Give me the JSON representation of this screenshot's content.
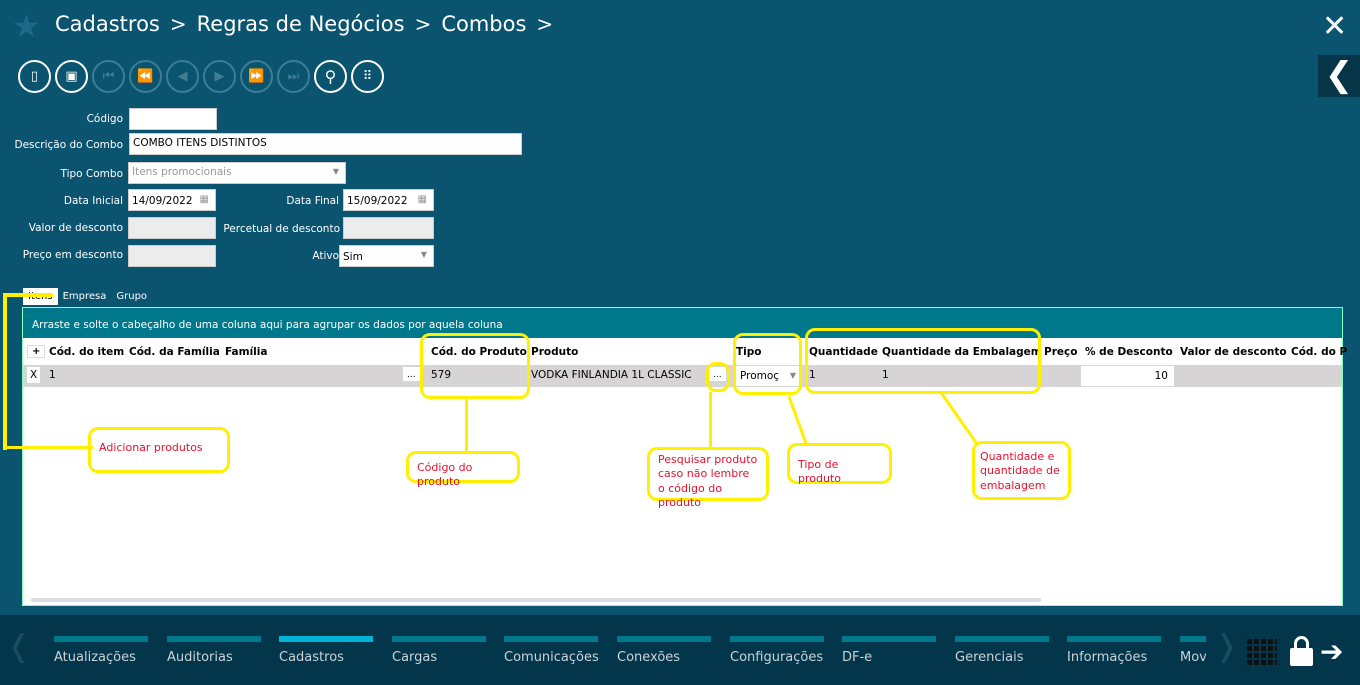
{
  "breadcrumb": [
    "Cadastros",
    "Regras de Negócios",
    "Combos"
  ],
  "breadcrumb_sep": ">",
  "icons": {
    "star": "★",
    "close": "✕",
    "back": "❮"
  },
  "toolbar": [
    "new-document",
    "save",
    "first",
    "previous-page",
    "previous",
    "next",
    "next-page",
    "last",
    "search",
    "grid-menu"
  ],
  "form": {
    "codigo": {
      "label": "Código",
      "value": ""
    },
    "descricao": {
      "label": "Descrição do Combo",
      "value": "COMBO ITENS DISTINTOS"
    },
    "tipo": {
      "label": "Tipo Combo",
      "value": "Itens promocionais"
    },
    "data_inicial": {
      "label": "Data Inicial",
      "value": "14/09/2022"
    },
    "data_final": {
      "label": "Data Final",
      "value": "15/09/2022"
    },
    "valor_desconto": {
      "label": "Valor de desconto",
      "value": ""
    },
    "percentual": {
      "label": "Percetual de desconto",
      "value": ""
    },
    "preco": {
      "label": "Preço em desconto",
      "value": ""
    },
    "ativo": {
      "label": "Ativo",
      "value": "Sim"
    }
  },
  "tabs": [
    "Itens",
    "Empresa",
    "Grupo"
  ],
  "grid": {
    "group_hint": "Arraste e solte o cabeçalho de uma coluna aqui para agrupar os dados por aquela coluna",
    "add": "+",
    "columns": [
      "Cód. do item",
      "Cód. da Família",
      "Família",
      "Cód. do Produto",
      "Produto",
      "Tipo",
      "Quantidade",
      "Quantidade da Embalagem",
      "Preço",
      "% de Desconto",
      "Valor de desconto",
      "Cód. do P"
    ],
    "row": {
      "remove": "X",
      "cod_item": "1",
      "lookup": "...",
      "cod_produto": "579",
      "produto": "VODKA FINLANDIA 1L CLASSIC",
      "lookup2": "...",
      "tipo": "Promoç",
      "quantidade": "1",
      "qtd_embalagem": "1",
      "desconto": "10"
    }
  },
  "annotations": {
    "adicionar": "Adicionar produtos",
    "codigo": "Código do produto",
    "pesquisar": "Pesquisar produto caso não lembre o código do produto",
    "tipo": "Tipo de produto",
    "quantidade": "Quantidade e quantidade de embalagem"
  },
  "annotation_color": "#ffef00",
  "nav": {
    "items": [
      "Atualizações",
      "Auditorias",
      "Cadastros",
      "Cargas",
      "Comunicações",
      "Conexões",
      "Configurações",
      "DF-e",
      "Gerenciais",
      "Informações",
      "Mov"
    ],
    "active": "Cadastros",
    "prev": "❬",
    "next": "❭",
    "arrow": "➔"
  }
}
